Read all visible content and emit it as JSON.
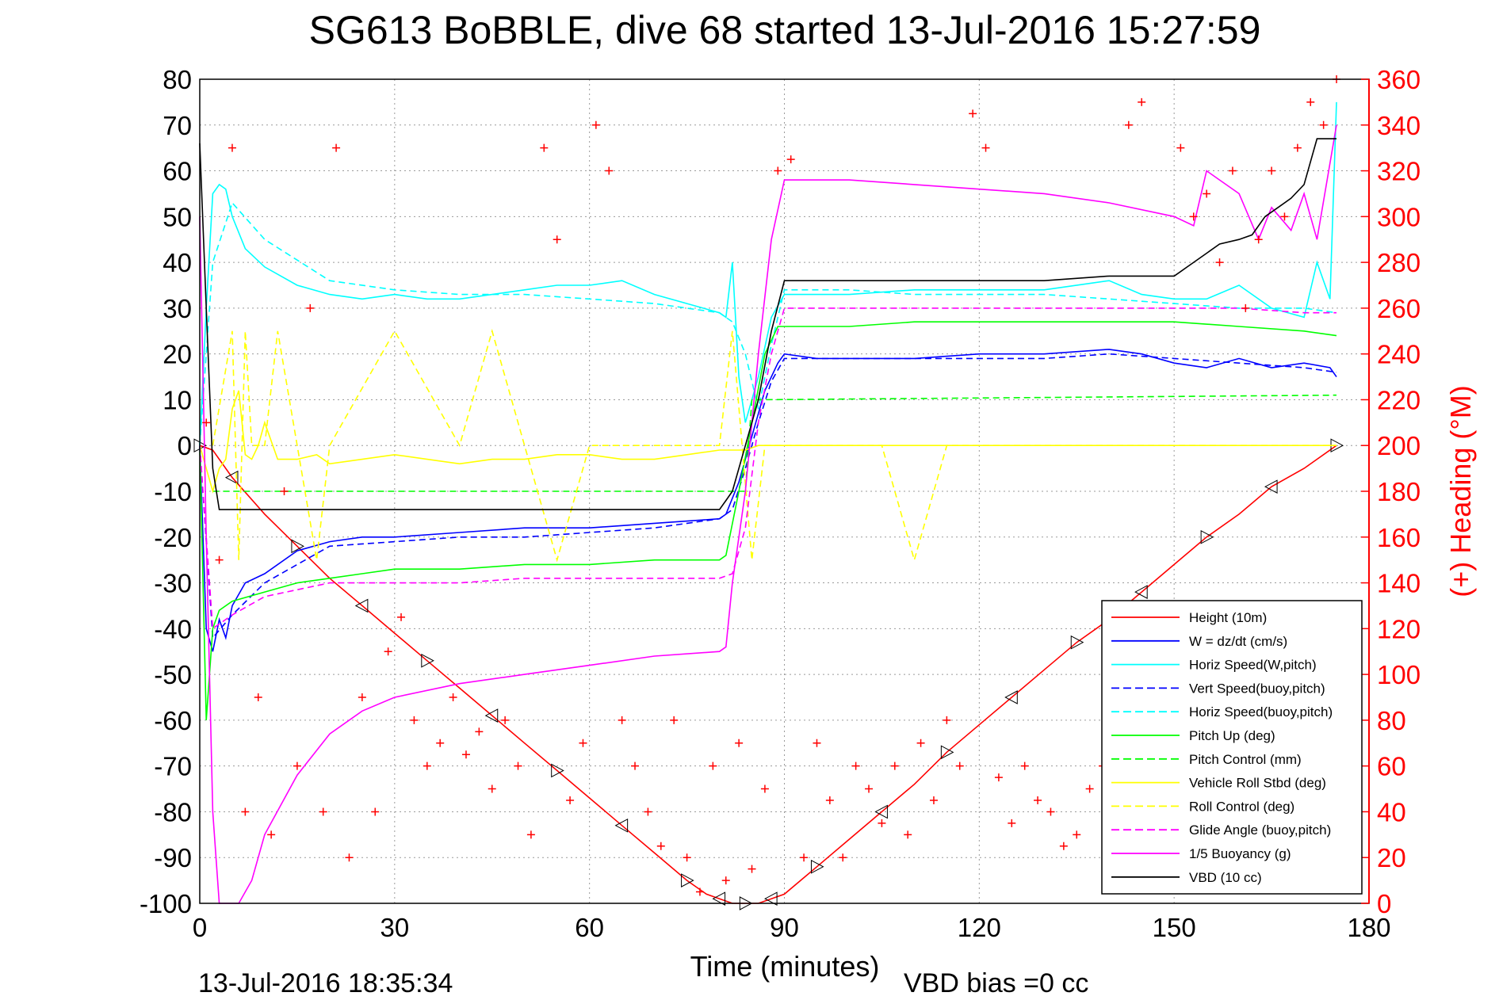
{
  "chart_data": {
    "type": "line",
    "title": "SG613 BoBBLE, dive 68 started 13-Jul-2016 15:27:59",
    "xlabel": "Time (minutes)",
    "ylabel_right": "(+) Heading (°M)",
    "footer_left": "13-Jul-2016 18:35:34",
    "footer_right": "VBD bias =0 cc",
    "xlim": [
      0,
      180
    ],
    "ylim_left": [
      -100,
      80
    ],
    "ylim_right": [
      0,
      360
    ],
    "x_ticks": [
      "0",
      "30",
      "60",
      "90",
      "120",
      "150",
      "180"
    ],
    "y_ticks_left": [
      "80",
      "70",
      "60",
      "50",
      "40",
      "30",
      "20",
      "10",
      "0",
      "-10",
      "-20",
      "-30",
      "-40",
      "-50",
      "-60",
      "-70",
      "-80",
      "-90",
      "-100"
    ],
    "y_ticks_right": [
      "360",
      "340",
      "320",
      "300",
      "280",
      "260",
      "240",
      "220",
      "200",
      "180",
      "160",
      "140",
      "120",
      "100",
      "80",
      "60",
      "40",
      "20",
      "0"
    ],
    "grid": true,
    "legend_position": "bottom-right",
    "legend": [
      {
        "label": "Height (10m)",
        "color": "#ff0000",
        "dash": "solid"
      },
      {
        "label": "W = dz/dt (cm/s)",
        "color": "#0000ff",
        "dash": "solid"
      },
      {
        "label": "Horiz Speed(W,pitch)",
        "color": "#00ffff",
        "dash": "solid"
      },
      {
        "label": "Vert Speed(buoy,pitch)",
        "color": "#0000ff",
        "dash": "dashed"
      },
      {
        "label": "Horiz Speed(buoy,pitch)",
        "color": "#00ffff",
        "dash": "dashed"
      },
      {
        "label": "Pitch Up (deg)",
        "color": "#00ff00",
        "dash": "solid"
      },
      {
        "label": "Pitch Control (mm)",
        "color": "#00ff00",
        "dash": "dashed"
      },
      {
        "label": "Vehicle Roll Stbd (deg)",
        "color": "#ffff00",
        "dash": "solid"
      },
      {
        "label": "Roll Control (deg)",
        "color": "#ffff00",
        "dash": "dashed"
      },
      {
        "label": "Glide Angle (buoy,pitch)",
        "color": "#ff00ff",
        "dash": "dashed"
      },
      {
        "label": "1/5 Buoyancy (g)",
        "color": "#ff00ff",
        "dash": "solid"
      },
      {
        "label": "VBD (10 cc)",
        "color": "#000000",
        "dash": "solid"
      }
    ],
    "series": [
      {
        "key": "depth",
        "name": "Height (10m)",
        "axis": "left",
        "color": "#ff0000",
        "dash": "solid",
        "markers": "triangles",
        "x": [
          0,
          2,
          5,
          10,
          15,
          20,
          25,
          30,
          35,
          40,
          45,
          50,
          55,
          60,
          65,
          70,
          75,
          78,
          80,
          82,
          84,
          86,
          88,
          90,
          95,
          100,
          105,
          110,
          115,
          120,
          125,
          130,
          135,
          140,
          145,
          150,
          155,
          160,
          165,
          170,
          175
        ],
        "y": [
          0,
          -1,
          -7,
          -15,
          -22,
          -29,
          -35,
          -41,
          -47,
          -53,
          -59,
          -65,
          -71,
          -77,
          -83,
          -89,
          -95,
          -98,
          -99,
          -100,
          -100,
          -100,
          -99,
          -98,
          -92,
          -86,
          -80,
          -74,
          -67,
          -61,
          -55,
          -49,
          -43,
          -38,
          -32,
          -26,
          -20,
          -15,
          -9,
          -5,
          0
        ]
      },
      {
        "key": "w",
        "name": "W = dz/dt (cm/s)",
        "axis": "left",
        "color": "#0000ff",
        "dash": "solid",
        "x": [
          0,
          1,
          2,
          3,
          4,
          5,
          7,
          10,
          15,
          20,
          25,
          30,
          40,
          50,
          60,
          70,
          80,
          81,
          83,
          85,
          87,
          89,
          90,
          95,
          100,
          110,
          120,
          130,
          140,
          145,
          150,
          155,
          160,
          165,
          170,
          174,
          175
        ],
        "y": [
          0,
          -40,
          -45,
          -38,
          -42,
          -35,
          -30,
          -28,
          -23,
          -21,
          -20,
          -20,
          -19,
          -18,
          -18,
          -17,
          -16,
          -15,
          -8,
          2,
          12,
          18,
          20,
          19,
          19,
          19,
          20,
          20,
          21,
          20,
          18,
          17,
          19,
          17,
          18,
          17,
          15
        ]
      },
      {
        "key": "hspd_w",
        "name": "Horiz Speed(W,pitch)",
        "axis": "left",
        "color": "#00ffff",
        "dash": "solid",
        "x": [
          0,
          1,
          2,
          3,
          4,
          5,
          7,
          10,
          15,
          20,
          25,
          30,
          35,
          40,
          45,
          50,
          55,
          60,
          65,
          70,
          75,
          80,
          81,
          82,
          83,
          84,
          86,
          88,
          90,
          95,
          100,
          110,
          120,
          130,
          140,
          145,
          150,
          155,
          160,
          165,
          170,
          172,
          174,
          175
        ],
        "y": [
          0,
          30,
          55,
          57,
          56,
          50,
          43,
          39,
          35,
          33,
          32,
          33,
          32,
          32,
          33,
          34,
          35,
          35,
          36,
          33,
          31,
          29,
          28,
          40,
          15,
          5,
          15,
          28,
          33,
          33,
          33,
          34,
          34,
          34,
          36,
          33,
          32,
          32,
          35,
          30,
          28,
          40,
          32,
          75
        ]
      },
      {
        "key": "vspd_b",
        "name": "Vert Speed(buoy,pitch)",
        "axis": "left",
        "color": "#0000ff",
        "dash": "dashed",
        "x": [
          0,
          2,
          5,
          10,
          20,
          30,
          40,
          50,
          60,
          70,
          80,
          82,
          84,
          86,
          88,
          90,
          100,
          110,
          120,
          130,
          140,
          150,
          160,
          170,
          175
        ],
        "y": [
          0,
          -42,
          -37,
          -30,
          -22,
          -21,
          -20,
          -20,
          -19,
          -18,
          -16,
          -14,
          -5,
          5,
          14,
          19,
          19,
          19,
          19,
          19,
          20,
          19,
          18,
          17,
          16
        ]
      },
      {
        "key": "hspd_b",
        "name": "Horiz Speed(buoy,pitch)",
        "axis": "left",
        "color": "#00ffff",
        "dash": "dashed",
        "x": [
          0,
          2,
          5,
          10,
          20,
          30,
          40,
          50,
          60,
          70,
          80,
          82,
          84,
          86,
          88,
          90,
          100,
          110,
          120,
          130,
          140,
          150,
          160,
          170,
          175
        ],
        "y": [
          0,
          40,
          53,
          45,
          36,
          34,
          33,
          33,
          32,
          31,
          29,
          27,
          20,
          8,
          22,
          34,
          34,
          33,
          33,
          33,
          32,
          31,
          30,
          30,
          29
        ]
      },
      {
        "key": "pitch",
        "name": "Pitch Up (deg)",
        "axis": "left",
        "color": "#00ff00",
        "dash": "solid",
        "x": [
          0,
          1,
          2,
          3,
          5,
          10,
          15,
          20,
          25,
          30,
          40,
          50,
          60,
          70,
          80,
          81,
          83,
          85,
          87,
          89,
          90,
          100,
          110,
          120,
          130,
          140,
          150,
          160,
          170,
          175
        ],
        "y": [
          0,
          -60,
          -40,
          -36,
          -34,
          -32,
          -30,
          -29,
          -28,
          -27,
          -27,
          -26,
          -26,
          -25,
          -25,
          -24,
          -10,
          5,
          20,
          26,
          26,
          26,
          27,
          27,
          27,
          27,
          27,
          26,
          25,
          24
        ]
      },
      {
        "key": "pitch_ctl",
        "name": "Pitch Control (mm)",
        "axis": "left",
        "color": "#00ff00",
        "dash": "dashed",
        "x": [
          2,
          3,
          80,
          81,
          84,
          85,
          86,
          87,
          175
        ],
        "y": [
          -10,
          -10,
          -10,
          -10,
          -10,
          10,
          10,
          10,
          11
        ]
      },
      {
        "key": "roll",
        "name": "Vehicle Roll Stbd (deg)",
        "axis": "left",
        "color": "#ffff00",
        "dash": "solid",
        "x": [
          0,
          2,
          3,
          4,
          5,
          6,
          7,
          8,
          9,
          10,
          12,
          15,
          18,
          20,
          25,
          30,
          35,
          40,
          45,
          50,
          55,
          60,
          65,
          70,
          75,
          80,
          82,
          84,
          86,
          88,
          90,
          100,
          110,
          120,
          130,
          140,
          150,
          155,
          160,
          165,
          170,
          174,
          175
        ],
        "y": [
          0,
          -10,
          -5,
          -3,
          8,
          12,
          -2,
          -3,
          0,
          5,
          -3,
          -3,
          -2,
          -4,
          -3,
          -2,
          -3,
          -4,
          -3,
          -3,
          -2,
          -2,
          -3,
          -3,
          -2,
          -1,
          -1,
          -1,
          0,
          0,
          0,
          0,
          0,
          0,
          0,
          0,
          0,
          0,
          0,
          0,
          0,
          0,
          0
        ]
      },
      {
        "key": "roll_ctl",
        "name": "Roll Control (deg)",
        "axis": "left",
        "color": "#ffff00",
        "dash": "dashed",
        "x": [
          2,
          5,
          6,
          7,
          8,
          10,
          12,
          15,
          18,
          20,
          30,
          40,
          45,
          50,
          55,
          60,
          70,
          80,
          82,
          85,
          87,
          90,
          100,
          105,
          110,
          115,
          120,
          130,
          140,
          150,
          160,
          170,
          175
        ],
        "y": [
          0,
          25,
          -25,
          25,
          0,
          0,
          25,
          0,
          -25,
          0,
          25,
          0,
          25,
          0,
          -25,
          0,
          0,
          0,
          25,
          -25,
          0,
          0,
          0,
          0,
          -25,
          0,
          0,
          0,
          0,
          0,
          0,
          0,
          0
        ]
      },
      {
        "key": "glide",
        "name": "Glide Angle (buoy,pitch)",
        "axis": "left",
        "color": "#ff00ff",
        "dash": "dashed",
        "x": [
          0,
          2,
          5,
          10,
          20,
          30,
          40,
          50,
          60,
          70,
          80,
          82,
          84,
          86,
          88,
          90,
          100,
          110,
          120,
          130,
          140,
          150,
          160,
          170,
          175
        ],
        "y": [
          0,
          -40,
          -37,
          -33,
          -30,
          -30,
          -30,
          -29,
          -29,
          -29,
          -29,
          -28,
          -18,
          5,
          20,
          30,
          30,
          30,
          30,
          30,
          30,
          30,
          30,
          29,
          29
        ]
      },
      {
        "key": "buoy",
        "name": "1/5 Buoyancy (g)",
        "axis": "left",
        "color": "#ff00ff",
        "dash": "solid",
        "x": [
          0,
          1,
          2,
          3,
          4,
          5,
          6,
          8,
          10,
          15,
          20,
          25,
          30,
          40,
          50,
          60,
          70,
          80,
          81,
          82,
          84,
          86,
          88,
          90,
          95,
          100,
          110,
          120,
          130,
          140,
          150,
          153,
          155,
          157,
          160,
          163,
          165,
          168,
          170,
          172,
          175
        ],
        "y": [
          50,
          -20,
          -80,
          -100,
          -100,
          -100,
          -100,
          -95,
          -85,
          -72,
          -63,
          -58,
          -55,
          -52,
          -50,
          -48,
          -46,
          -45,
          -44,
          -30,
          -10,
          20,
          45,
          58,
          58,
          58,
          57,
          56,
          55,
          53,
          50,
          48,
          60,
          58,
          55,
          45,
          52,
          47,
          55,
          45,
          70
        ]
      },
      {
        "key": "vbd",
        "name": "VBD (10 cc)",
        "axis": "left",
        "color": "#000000",
        "dash": "solid",
        "x": [
          0,
          1,
          2,
          3,
          4,
          80,
          81,
          82,
          84,
          86,
          88,
          90,
          100,
          110,
          120,
          130,
          140,
          150,
          151,
          152,
          153,
          155,
          157,
          160,
          162,
          163,
          164,
          166,
          168,
          170,
          172,
          175
        ],
        "y": [
          66,
          30,
          -5,
          -14,
          -14,
          -14,
          -12,
          -10,
          0,
          10,
          25,
          36,
          36,
          36,
          36,
          36,
          37,
          37,
          38,
          39,
          40,
          42,
          44,
          45,
          46,
          48,
          50,
          52,
          54,
          57,
          67,
          67
        ]
      },
      {
        "key": "heading",
        "name": "Heading",
        "axis": "right",
        "color": "#ff0000",
        "dash": "none",
        "markers": "plus",
        "x": [
          1,
          3,
          5,
          7,
          9,
          11,
          13,
          15,
          17,
          19,
          21,
          23,
          25,
          27,
          29,
          31,
          33,
          35,
          37,
          39,
          41,
          43,
          45,
          47,
          49,
          51,
          53,
          55,
          57,
          59,
          61,
          63,
          65,
          67,
          69,
          71,
          73,
          75,
          77,
          79,
          81,
          83,
          85,
          87,
          89,
          91,
          93,
          95,
          97,
          99,
          101,
          103,
          105,
          107,
          109,
          111,
          113,
          115,
          117,
          119,
          121,
          123,
          125,
          127,
          129,
          131,
          133,
          135,
          137,
          139,
          141,
          143,
          145,
          147,
          149,
          151,
          153,
          155,
          157,
          159,
          161,
          163,
          165,
          167,
          169,
          171,
          173,
          175
        ],
        "y": [
          210,
          150,
          330,
          40,
          90,
          30,
          180,
          60,
          260,
          40,
          330,
          20,
          90,
          40,
          110,
          125,
          80,
          60,
          70,
          90,
          65,
          75,
          50,
          80,
          60,
          30,
          330,
          290,
          45,
          70,
          340,
          320,
          80,
          60,
          40,
          25,
          80,
          20,
          5,
          60,
          10,
          70,
          15,
          50,
          320,
          325,
          20,
          70,
          45,
          20,
          60,
          50,
          35,
          60,
          30,
          70,
          45,
          80,
          60,
          345,
          330,
          55,
          35,
          60,
          45,
          40,
          25,
          30,
          50,
          60,
          40,
          340,
          350,
          55,
          40,
          330,
          300,
          310,
          280,
          320,
          260,
          290,
          320,
          300,
          330,
          350,
          340,
          360
        ]
      }
    ]
  }
}
